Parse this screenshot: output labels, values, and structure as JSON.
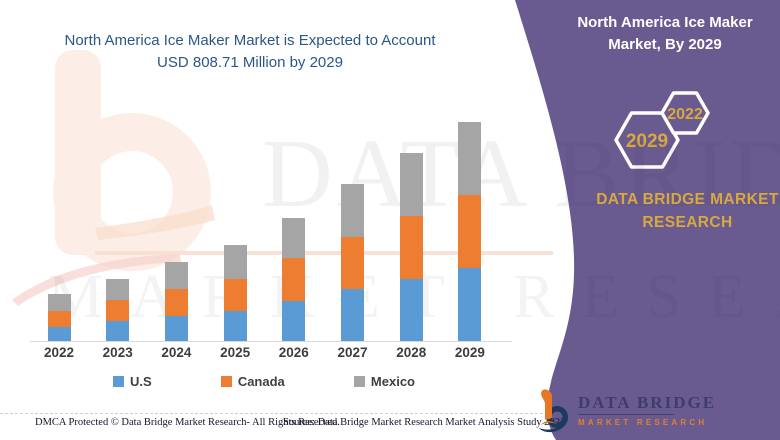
{
  "header": {
    "title": "North America Ice Maker Market is Expected to Account USD 808.71 Million by 2029",
    "title_lines": [
      "North America Ice Maker Market is Expected to Account",
      "USD 808.71 Million by 2029"
    ]
  },
  "side_panel": {
    "title": "North America Ice Maker Market, By 2029",
    "title_lines": [
      "North America Ice Maker",
      "Market, By 2029"
    ],
    "hexagons": [
      {
        "label": "2029"
      },
      {
        "label": "2022"
      }
    ],
    "brand_lines": [
      "DATA BRIDGE MARKET",
      "RESEARCH"
    ]
  },
  "chart_data": {
    "type": "bar",
    "stacked": true,
    "title": "North America Ice Maker Market is Expected to Account USD 808.71 Million by 2029",
    "xlabel": "",
    "ylabel": "",
    "unit": "USD Million",
    "values_estimated": true,
    "categories": [
      "2022",
      "2023",
      "2024",
      "2025",
      "2026",
      "2027",
      "2028",
      "2029"
    ],
    "series": [
      {
        "name": "U.S",
        "color": "#5b9bd5",
        "values": [
          51.7,
          73.9,
          92.3,
          110.8,
          147.7,
          192.0,
          229.0,
          269.6
        ]
      },
      {
        "name": "Canada",
        "color": "#ed7d31",
        "values": [
          59.1,
          77.5,
          99.7,
          118.2,
          158.8,
          192.0,
          232.6,
          269.6
        ]
      },
      {
        "name": "Mexico",
        "color": "#a5a5a5",
        "values": [
          62.8,
          77.5,
          99.7,
          125.6,
          147.7,
          195.7,
          232.6,
          269.51
        ]
      }
    ],
    "total_2029": 808.71,
    "ylim": [
      0,
      830
    ],
    "grid": false,
    "legend_position": "bottom"
  },
  "footer": {
    "dmca": "DMCA Protected © Data Bridge Market Research- All Rights Reserved.",
    "source": "Source: Data Bridge Market Research Market Analysis Study 2022"
  },
  "logo": {
    "name": "DATA BRIDGE",
    "tagline": "MARKET RESEARCH"
  },
  "watermark": {
    "line1": "DATA BRIDGE",
    "line2": "MARKET RESEARCH"
  },
  "colors": {
    "panel_purple": "#695a90",
    "title_blue": "#2b5787",
    "accent_gold": "#d7a93e",
    "axis_line": "#d9d9d9",
    "axis_label": "#3d3d3d",
    "logo_orange": "#e1812f",
    "logo_navy": "#1b3a5e"
  }
}
